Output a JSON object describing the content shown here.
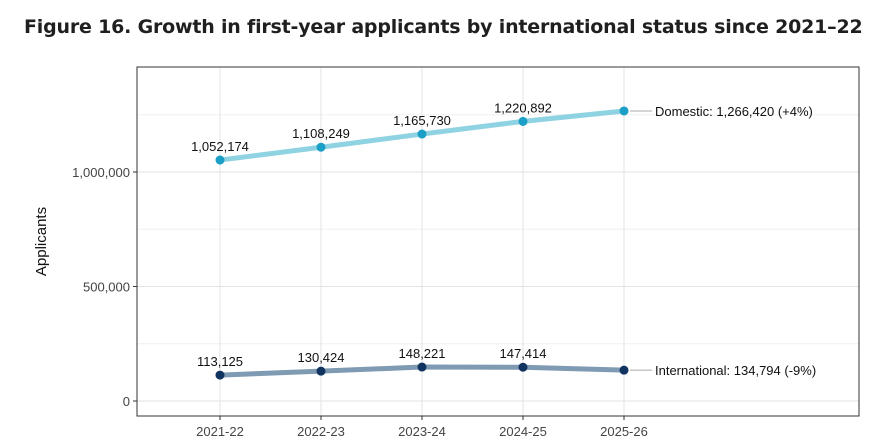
{
  "chart_data": {
    "type": "line",
    "title": "Figure 16. Growth in first-year applicants by international status since 2021–22",
    "ylabel": "Applicants",
    "xlabel": "",
    "categories": [
      "2021-22",
      "2022-23",
      "2023-24",
      "2024-25",
      "2025-26"
    ],
    "ylim": [
      -40000,
      1400000
    ],
    "yticks": [
      0,
      500000,
      1000000
    ],
    "ytick_labels": [
      "0",
      "500,000",
      "1,000,000"
    ],
    "grid": true,
    "series": [
      {
        "name": "Domestic",
        "values": [
          1052174,
          1108249,
          1165730,
          1220892,
          1266420
        ],
        "data_labels": [
          "1,052,174",
          "1,108,249",
          "1,165,730",
          "1,220,892"
        ],
        "end_label": "Domestic: 1,266,420 (+4%)",
        "line_color": "#8fd3e2",
        "point_color": "#1c9fc6"
      },
      {
        "name": "International",
        "values": [
          113125,
          130424,
          148221,
          147414,
          134794
        ],
        "data_labels": [
          "113,125",
          "130,424",
          "148,221",
          "147,414"
        ],
        "end_label": "International: 134,794 (-9%)",
        "line_color": "#7f9ab3",
        "point_color": "#10345f"
      }
    ]
  }
}
